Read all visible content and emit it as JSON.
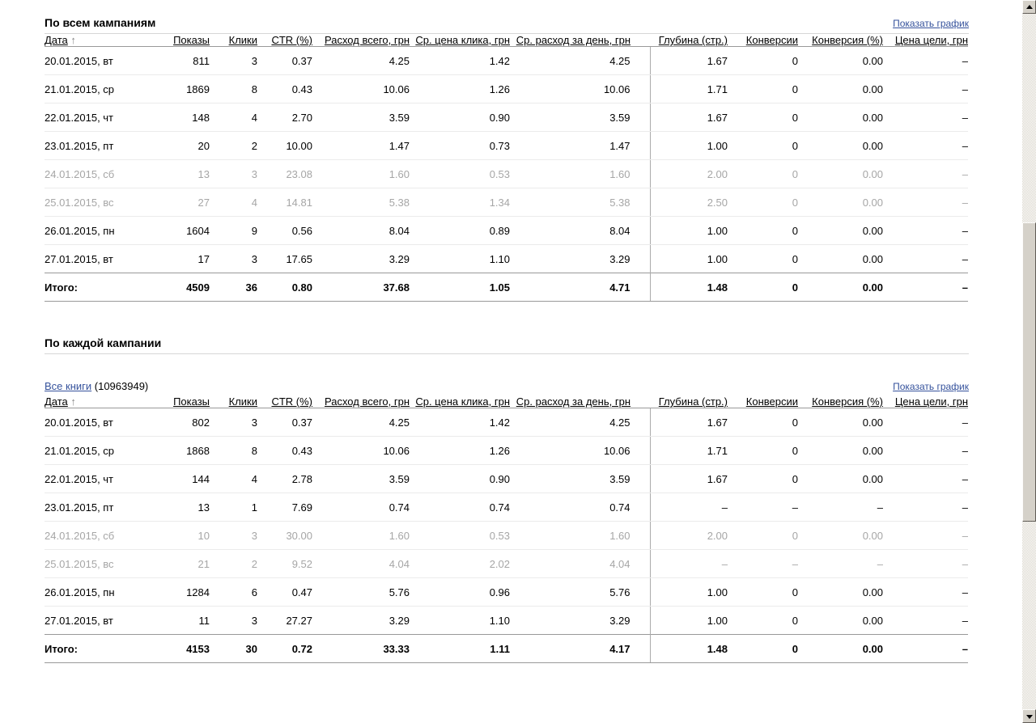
{
  "columns": [
    {
      "label": "Дата",
      "sort": "↑"
    },
    {
      "label": "Показы"
    },
    {
      "label": "Клики"
    },
    {
      "label": "CTR (%)"
    },
    {
      "label": "Расход всего, грн"
    },
    {
      "label": "Ср. цена клика, грн"
    },
    {
      "label": "Ср. расход за день, грн"
    },
    {
      "label": "Глубина (стр.)"
    },
    {
      "label": "Конверсии"
    },
    {
      "label": "Конверсия (%)"
    },
    {
      "label": "Цена цели, грн"
    }
  ],
  "sections": [
    {
      "title": "По всем кампаниям",
      "show_chart_label": "Показать график",
      "rows": [
        {
          "weekend": false,
          "cells": [
            "20.01.2015, вт",
            "811",
            "3",
            "0.37",
            "4.25",
            "1.42",
            "4.25",
            "1.67",
            "0",
            "0.00",
            "–"
          ]
        },
        {
          "weekend": false,
          "cells": [
            "21.01.2015, ср",
            "1869",
            "8",
            "0.43",
            "10.06",
            "1.26",
            "10.06",
            "1.71",
            "0",
            "0.00",
            "–"
          ]
        },
        {
          "weekend": false,
          "cells": [
            "22.01.2015, чт",
            "148",
            "4",
            "2.70",
            "3.59",
            "0.90",
            "3.59",
            "1.67",
            "0",
            "0.00",
            "–"
          ]
        },
        {
          "weekend": false,
          "cells": [
            "23.01.2015, пт",
            "20",
            "2",
            "10.00",
            "1.47",
            "0.73",
            "1.47",
            "1.00",
            "0",
            "0.00",
            "–"
          ]
        },
        {
          "weekend": true,
          "cells": [
            "24.01.2015, сб",
            "13",
            "3",
            "23.08",
            "1.60",
            "0.53",
            "1.60",
            "2.00",
            "0",
            "0.00",
            "–"
          ]
        },
        {
          "weekend": true,
          "cells": [
            "25.01.2015, вс",
            "27",
            "4",
            "14.81",
            "5.38",
            "1.34",
            "5.38",
            "2.50",
            "0",
            "0.00",
            "–"
          ]
        },
        {
          "weekend": false,
          "cells": [
            "26.01.2015, пн",
            "1604",
            "9",
            "0.56",
            "8.04",
            "0.89",
            "8.04",
            "1.00",
            "0",
            "0.00",
            "–"
          ]
        },
        {
          "weekend": false,
          "cells": [
            "27.01.2015, вт",
            "17",
            "3",
            "17.65",
            "3.29",
            "1.10",
            "3.29",
            "1.00",
            "0",
            "0.00",
            "–"
          ]
        }
      ],
      "totals": [
        "Итого:",
        "4509",
        "36",
        "0.80",
        "37.68",
        "1.05",
        "4.71",
        "1.48",
        "0",
        "0.00",
        "–"
      ]
    },
    {
      "title": "По каждой кампании",
      "show_chart_label": "Показать график",
      "campaign_link": "Все книги",
      "campaign_id": " (10963949)",
      "rows": [
        {
          "weekend": false,
          "cells": [
            "20.01.2015, вт",
            "802",
            "3",
            "0.37",
            "4.25",
            "1.42",
            "4.25",
            "1.67",
            "0",
            "0.00",
            "–"
          ]
        },
        {
          "weekend": false,
          "cells": [
            "21.01.2015, ср",
            "1868",
            "8",
            "0.43",
            "10.06",
            "1.26",
            "10.06",
            "1.71",
            "0",
            "0.00",
            "–"
          ]
        },
        {
          "weekend": false,
          "cells": [
            "22.01.2015, чт",
            "144",
            "4",
            "2.78",
            "3.59",
            "0.90",
            "3.59",
            "1.67",
            "0",
            "0.00",
            "–"
          ]
        },
        {
          "weekend": false,
          "cells": [
            "23.01.2015, пт",
            "13",
            "1",
            "7.69",
            "0.74",
            "0.74",
            "0.74",
            "–",
            "–",
            "–",
            "–"
          ]
        },
        {
          "weekend": true,
          "cells": [
            "24.01.2015, сб",
            "10",
            "3",
            "30.00",
            "1.60",
            "0.53",
            "1.60",
            "2.00",
            "0",
            "0.00",
            "–"
          ]
        },
        {
          "weekend": true,
          "cells": [
            "25.01.2015, вс",
            "21",
            "2",
            "9.52",
            "4.04",
            "2.02",
            "4.04",
            "–",
            "–",
            "–",
            "–"
          ]
        },
        {
          "weekend": false,
          "cells": [
            "26.01.2015, пн",
            "1284",
            "6",
            "0.47",
            "5.76",
            "0.96",
            "5.76",
            "1.00",
            "0",
            "0.00",
            "–"
          ]
        },
        {
          "weekend": false,
          "cells": [
            "27.01.2015, вт",
            "11",
            "3",
            "27.27",
            "3.29",
            "1.10",
            "3.29",
            "1.00",
            "0",
            "0.00",
            "–"
          ]
        }
      ],
      "totals": [
        "Итого:",
        "4153",
        "30",
        "0.72",
        "33.33",
        "1.11",
        "4.17",
        "1.48",
        "0",
        "0.00",
        "–"
      ]
    }
  ]
}
